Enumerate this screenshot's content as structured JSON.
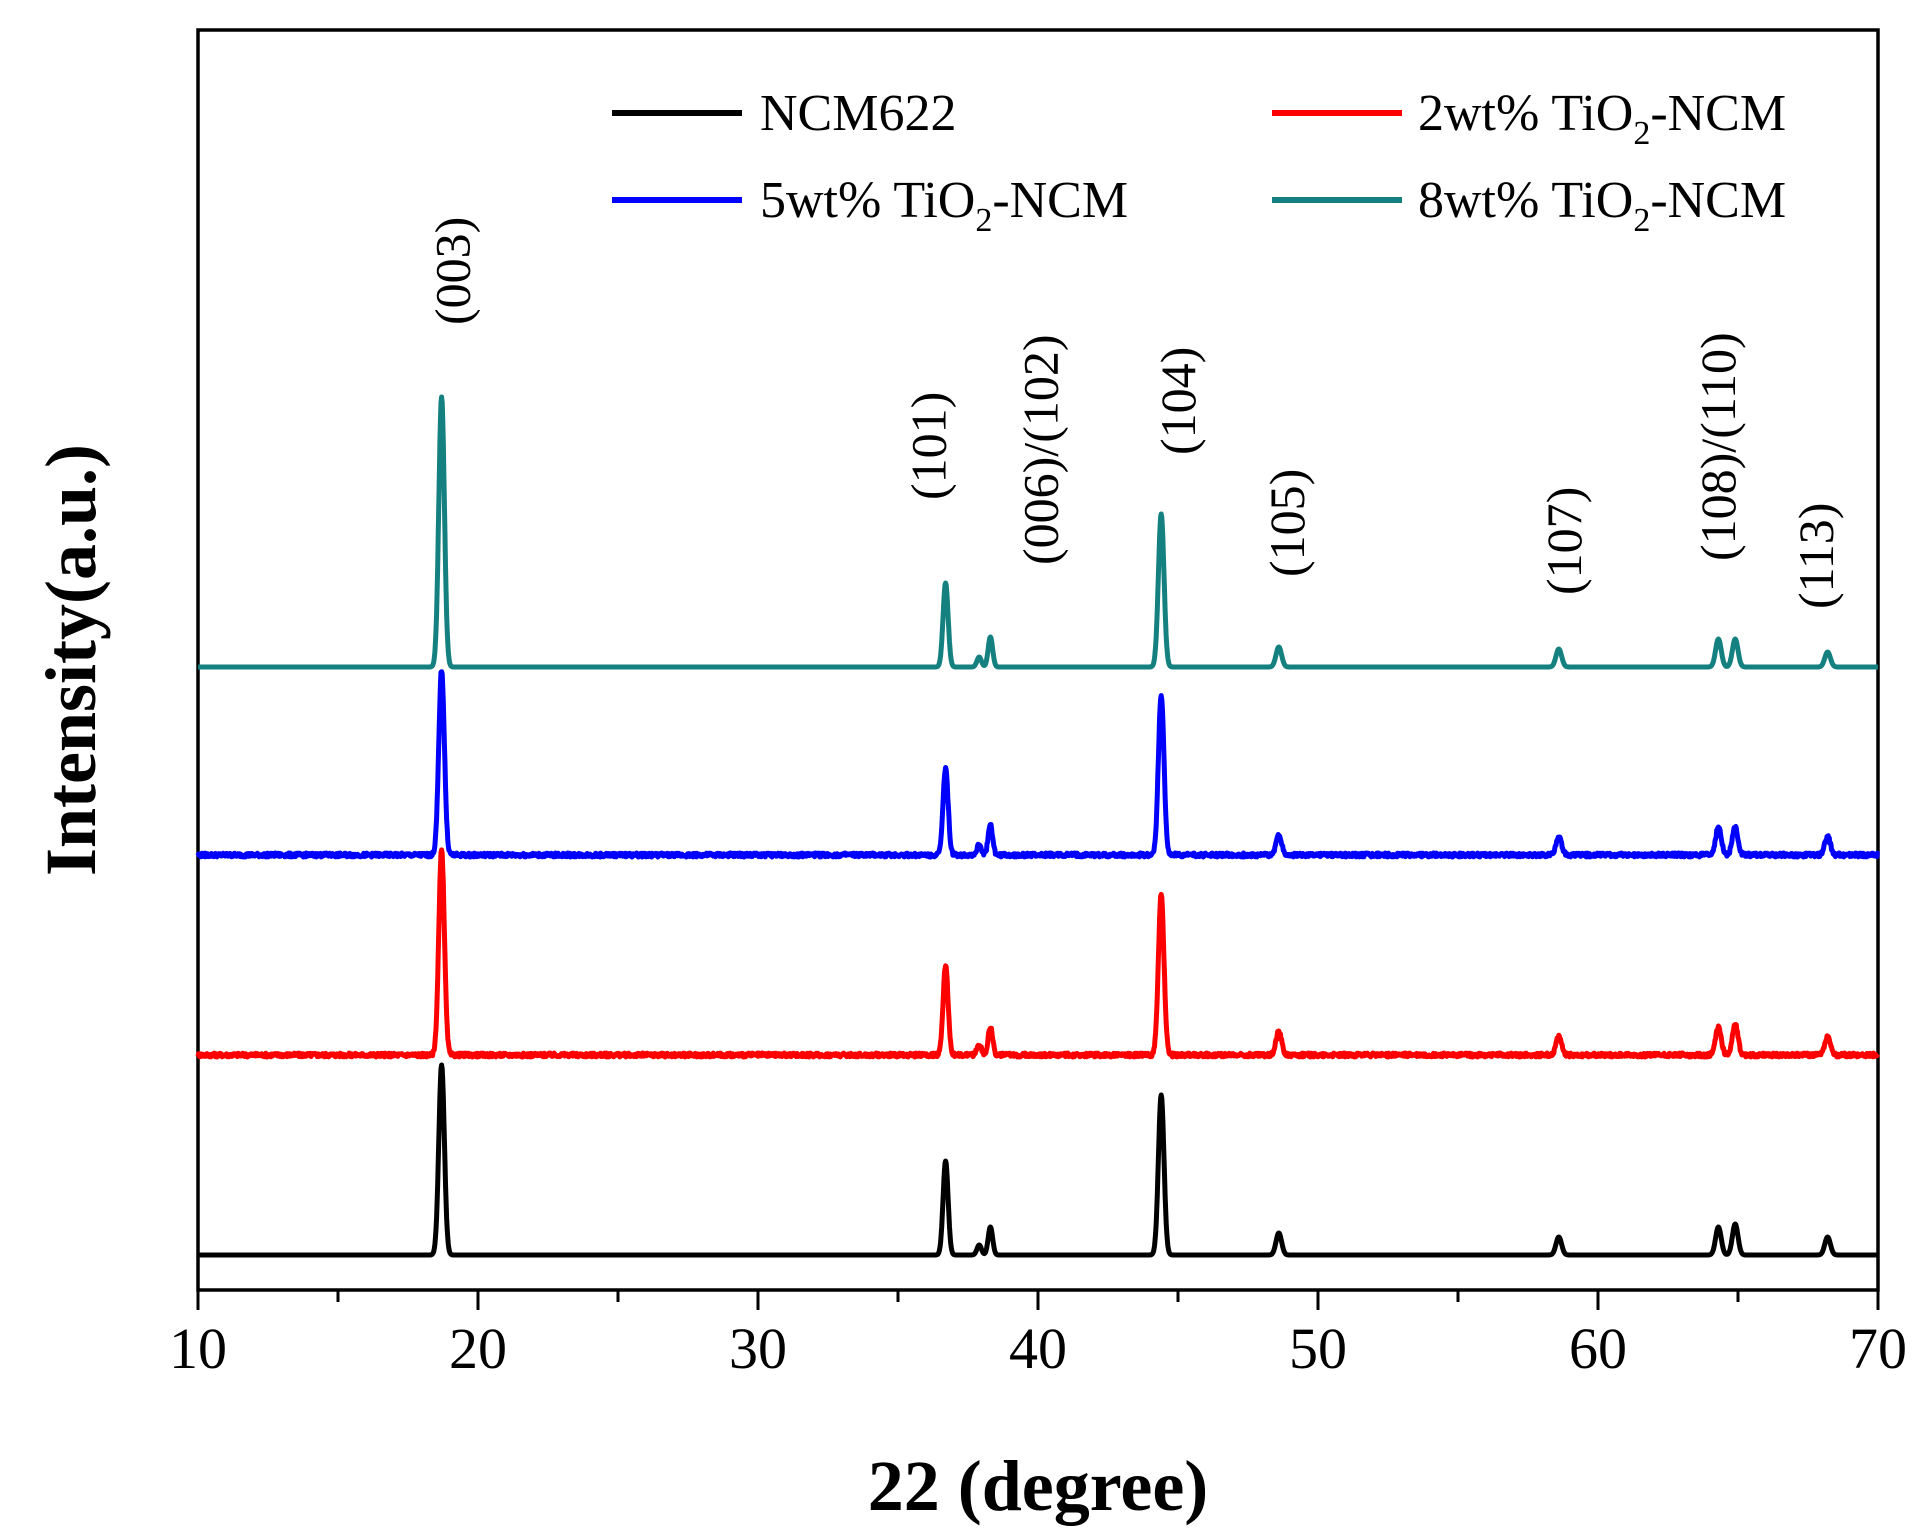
{
  "chart_data": {
    "type": "line",
    "title": "",
    "xlabel": "22 (degree)",
    "ylabel": "Intensity(a.u.)",
    "xlim": [
      10,
      70
    ],
    "x_major_ticks": [
      10,
      20,
      30,
      40,
      50,
      60,
      70
    ],
    "x_tick_labels": [
      "10",
      "20",
      "30",
      "40",
      "50",
      "60",
      "70"
    ],
    "x_minor_step": 5,
    "y_ticks_shown": false,
    "legend_position": "top",
    "series": [
      {
        "name": "NCM622",
        "legend_text": "NCM622",
        "color": "#000000",
        "baseline": 0,
        "noise": 0,
        "peaks": [
          {
            "x": 18.7,
            "h": 190,
            "w": 0.1
          },
          {
            "x": 36.7,
            "h": 94,
            "w": 0.09
          },
          {
            "x": 37.9,
            "h": 10,
            "w": 0.08
          },
          {
            "x": 38.3,
            "h": 28,
            "w": 0.08
          },
          {
            "x": 44.4,
            "h": 160,
            "w": 0.1
          },
          {
            "x": 48.6,
            "h": 22,
            "w": 0.1
          },
          {
            "x": 58.6,
            "h": 18,
            "w": 0.1
          },
          {
            "x": 64.3,
            "h": 28,
            "w": 0.1
          },
          {
            "x": 64.9,
            "h": 31,
            "w": 0.1
          },
          {
            "x": 68.2,
            "h": 18,
            "w": 0.1
          }
        ]
      },
      {
        "name": "2wt% TiO2-NCM",
        "legend_parts": [
          "2wt% TiO",
          "2",
          "-NCM"
        ],
        "color": "#ff0000",
        "baseline": 200,
        "noise": 1,
        "peaks": [
          {
            "x": 18.7,
            "h": 205,
            "w": 0.1
          },
          {
            "x": 36.7,
            "h": 90,
            "w": 0.09
          },
          {
            "x": 37.9,
            "h": 10,
            "w": 0.08
          },
          {
            "x": 38.3,
            "h": 28,
            "w": 0.08
          },
          {
            "x": 44.4,
            "h": 160,
            "w": 0.1
          },
          {
            "x": 48.6,
            "h": 24,
            "w": 0.1
          },
          {
            "x": 58.6,
            "h": 18,
            "w": 0.1
          },
          {
            "x": 64.3,
            "h": 28,
            "w": 0.1
          },
          {
            "x": 64.9,
            "h": 31,
            "w": 0.1
          },
          {
            "x": 68.2,
            "h": 18,
            "w": 0.1
          }
        ]
      },
      {
        "name": "5wt% TiO2-NCM",
        "legend_parts": [
          "5wt% TiO",
          "2",
          "-NCM"
        ],
        "color": "#0000ff",
        "baseline": 400,
        "noise": 1,
        "peaks": [
          {
            "x": 18.7,
            "h": 185,
            "w": 0.1
          },
          {
            "x": 36.7,
            "h": 87,
            "w": 0.09
          },
          {
            "x": 37.9,
            "h": 10,
            "w": 0.08
          },
          {
            "x": 38.3,
            "h": 30,
            "w": 0.08
          },
          {
            "x": 44.4,
            "h": 160,
            "w": 0.1
          },
          {
            "x": 48.6,
            "h": 20,
            "w": 0.1
          },
          {
            "x": 58.6,
            "h": 18,
            "w": 0.1
          },
          {
            "x": 64.3,
            "h": 28,
            "w": 0.1
          },
          {
            "x": 64.9,
            "h": 28,
            "w": 0.1
          },
          {
            "x": 68.2,
            "h": 18,
            "w": 0.1
          }
        ]
      },
      {
        "name": "8wt% TiO2-NCM",
        "legend_parts": [
          "8wt% TiO",
          "2",
          "-NCM"
        ],
        "color": "#158080",
        "baseline": 588,
        "noise": 0,
        "peaks": [
          {
            "x": 18.7,
            "h": 270,
            "w": 0.1
          },
          {
            "x": 36.7,
            "h": 84,
            "w": 0.09
          },
          {
            "x": 37.9,
            "h": 10,
            "w": 0.08
          },
          {
            "x": 38.3,
            "h": 30,
            "w": 0.08
          },
          {
            "x": 44.4,
            "h": 153,
            "w": 0.1
          },
          {
            "x": 48.6,
            "h": 20,
            "w": 0.1
          },
          {
            "x": 58.6,
            "h": 18,
            "w": 0.1
          },
          {
            "x": 64.3,
            "h": 28,
            "w": 0.1
          },
          {
            "x": 64.9,
            "h": 28,
            "w": 0.1
          },
          {
            "x": 68.2,
            "h": 15,
            "w": 0.1
          }
        ]
      }
    ],
    "annotations": [
      {
        "text": "(003)",
        "x": 19.7,
        "y": 930
      },
      {
        "text": "(101)",
        "x": 36.7,
        "y": 755
      },
      {
        "text": "(006)/(102)",
        "x": 40.7,
        "y": 690
      },
      {
        "text": "(104)",
        "x": 45.6,
        "y": 800
      },
      {
        "text": "(105)",
        "x": 49.5,
        "y": 678
      },
      {
        "text": "(107)",
        "x": 59.4,
        "y": 660
      },
      {
        "text": "(108)/(110)",
        "x": 64.9,
        "y": 694
      },
      {
        "text": "(113)",
        "x": 68.4,
        "y": 646
      }
    ]
  }
}
